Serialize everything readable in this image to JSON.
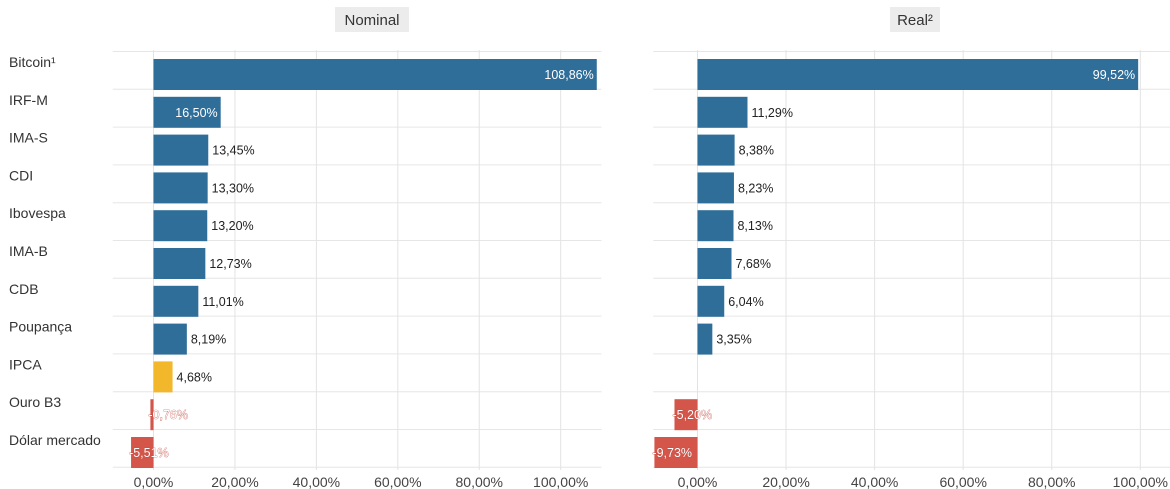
{
  "chart_data": {
    "type": "bar",
    "orientation": "horizontal",
    "categories": [
      "Bitcoin¹",
      "IRF-M",
      "IMA-S",
      "CDI",
      "Ibovespa",
      "IMA-B",
      "CDB",
      "Poupança",
      "IPCA",
      "Ouro B3",
      "Dólar mercado"
    ],
    "colors": {
      "positive": "#2e6e99",
      "highlight": "#f2b72a",
      "negative": "#d4554a"
    },
    "panels": [
      {
        "title": "Nominal",
        "values": [
          108.86,
          16.5,
          13.45,
          13.3,
          13.2,
          12.73,
          11.01,
          8.19,
          4.68,
          -0.76,
          -5.51
        ],
        "labels": [
          "108,86%",
          "16,50%",
          "13,45%",
          "13,30%",
          "13,20%",
          "12,73%",
          "11,01%",
          "8,19%",
          "4,68%",
          "-0,76%",
          "-5,51%"
        ],
        "highlight_category": "IPCA",
        "xlim": [
          -10,
          110
        ],
        "ticks": [
          0,
          20,
          40,
          60,
          80,
          100
        ],
        "tick_labels": [
          "0,00%",
          "20,00%",
          "40,00%",
          "60,00%",
          "80,00%",
          "100,00%"
        ]
      },
      {
        "title": "Real²",
        "values": [
          99.52,
          11.29,
          8.38,
          8.23,
          8.13,
          7.68,
          6.04,
          3.35,
          null,
          -5.2,
          -9.73
        ],
        "labels": [
          "99,52%",
          "11,29%",
          "8,38%",
          "8,23%",
          "8,13%",
          "7,68%",
          "6,04%",
          "3,35%",
          "",
          "-5,20%",
          "-9,73%"
        ],
        "highlight_category": "",
        "xlim": [
          -10,
          110
        ],
        "ticks": [
          0,
          20,
          40,
          60,
          80,
          100
        ],
        "tick_labels": [
          "0,00%",
          "20,00%",
          "40,00%",
          "60,00%",
          "80,00%",
          "100,00%"
        ]
      }
    ]
  }
}
